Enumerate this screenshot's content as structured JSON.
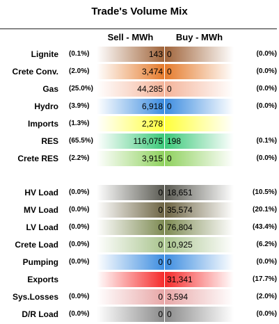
{
  "chart_data": {
    "type": "table",
    "title": "Trade's Volume Mix",
    "columns": {
      "sell": "Sell - MWh",
      "buy": "Buy - MWh"
    },
    "groups": [
      {
        "rows": [
          {
            "label": "Lignite",
            "sell_pct": "(0.1%)",
            "sell": "143",
            "buy": "0",
            "buy_pct": "(0.0%)",
            "color": "#a0643a"
          },
          {
            "label": "Crete Conv.",
            "sell_pct": "(2.0%)",
            "sell": "3,474",
            "buy": "0",
            "buy_pct": "(0.0%)",
            "color": "#e57b2c"
          },
          {
            "label": "Gas",
            "sell_pct": "(25.0%)",
            "sell": "44,285",
            "buy": "0",
            "buy_pct": "(0.0%)",
            "color": "#f4b49a"
          },
          {
            "label": "Hydro",
            "sell_pct": "(3.9%)",
            "sell": "6,918",
            "buy": "0",
            "buy_pct": "(0.0%)",
            "color": "#3d8de0"
          },
          {
            "label": "Imports",
            "sell_pct": "(1.3%)",
            "sell": "2,278",
            "buy": "",
            "buy_pct": "",
            "color": "#ffff3c"
          },
          {
            "label": "RES",
            "sell_pct": "(65.5%)",
            "sell": "116,075",
            "buy": "198",
            "buy_pct": "(0.1%)",
            "color": "#3cc97a"
          },
          {
            "label": "Crete RES",
            "sell_pct": "(2.2%)",
            "sell": "3,915",
            "buy": "0",
            "buy_pct": "(0.0%)",
            "color": "#8fd15e"
          }
        ]
      },
      {
        "rows": [
          {
            "label": "HV Load",
            "sell_pct": "(0.0%)",
            "sell": "0",
            "buy": "18,651",
            "buy_pct": "(10.5%)",
            "color": "#5a5a52"
          },
          {
            "label": "MV Load",
            "sell_pct": "(0.0%)",
            "sell": "0",
            "buy": "35,574",
            "buy_pct": "(20.1%)",
            "color": "#6d6443"
          },
          {
            "label": "LV Load",
            "sell_pct": "(0.0%)",
            "sell": "0",
            "buy": "76,804",
            "buy_pct": "(43.4%)",
            "color": "#7d8a52"
          },
          {
            "label": "Crete Load",
            "sell_pct": "(0.0%)",
            "sell": "0",
            "buy": "10,925",
            "buy_pct": "(6.2%)",
            "color": "#a9c48e"
          },
          {
            "label": "Pumping",
            "sell_pct": "(0.0%)",
            "sell": "0",
            "buy": "0",
            "buy_pct": "(0.0%)",
            "color": "#3d8de0"
          },
          {
            "label": "Exports",
            "sell_pct": "",
            "sell": "",
            "buy": "31,341",
            "buy_pct": "(17.7%)",
            "color": "#f52a2a"
          },
          {
            "label": "Sys.Losses",
            "sell_pct": "(0.0%)",
            "sell": "0",
            "buy": "3,594",
            "buy_pct": "(2.0%)",
            "color": "#e8a7a7"
          },
          {
            "label": "D/R Load",
            "sell_pct": "(0.0%)",
            "sell": "0",
            "buy": "0",
            "buy_pct": "(0.0%)",
            "color": "#8a8a8a"
          }
        ]
      }
    ]
  }
}
